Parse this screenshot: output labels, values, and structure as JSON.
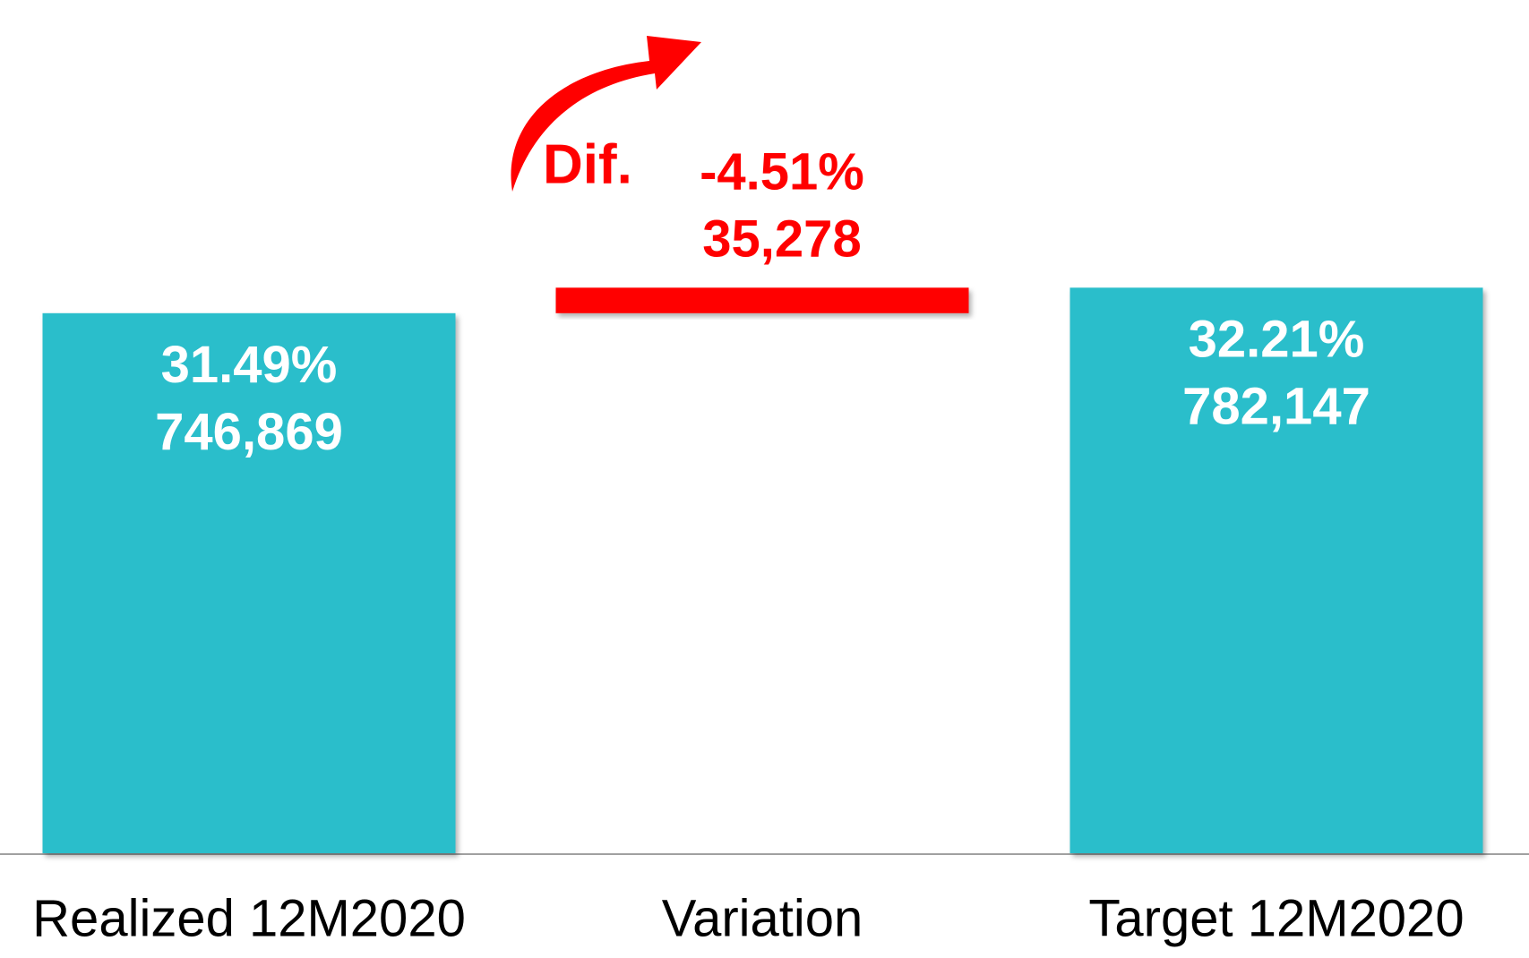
{
  "chart_data": {
    "type": "waterfall",
    "categories": [
      "Realized 12M2020",
      "Variation",
      "Target 12M2020"
    ],
    "values": [
      746869,
      35278,
      782147
    ],
    "value_labels": [
      "746,869",
      "35,278",
      "782,147"
    ],
    "percents": [
      31.49,
      -4.51,
      32.21
    ],
    "percent_labels": [
      "31.49%",
      "-4.51%",
      "32.21%"
    ],
    "colors": [
      "#2bbecb",
      "#ff0000",
      "#2bbecb"
    ],
    "annotation": "Dif.",
    "ylim": [
      0,
      1180000
    ]
  }
}
